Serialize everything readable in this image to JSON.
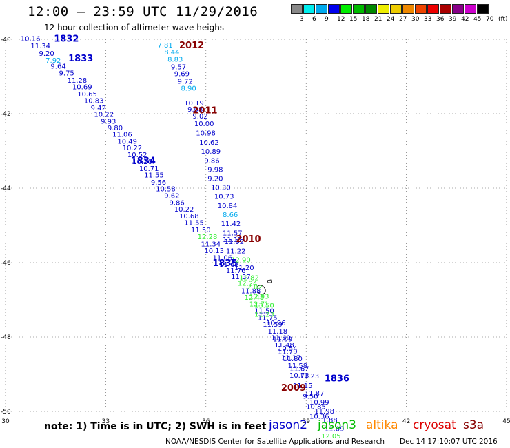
{
  "title": "12:00 — 23:59 UTC 11/29/2016",
  "subtitle": "12 hour collection of altimeter wave heighs",
  "color_scale": {
    "labels": [
      "3",
      "6",
      "9",
      "12",
      "15",
      "18",
      "21",
      "24",
      "27",
      "30",
      "33",
      "36",
      "39",
      "42",
      "45",
      "70",
      "(ft)"
    ],
    "colors": [
      "#888888",
      "#00eeee",
      "#00aaee",
      "#0000ee",
      "#00ee00",
      "#00bb00",
      "#008800",
      "#eeee00",
      "#eecc00",
      "#ee8800",
      "#ee4400",
      "#ee0000",
      "#aa0000",
      "#880088",
      "#cc00cc",
      "#000000"
    ]
  },
  "note": "note: 1) Time is in UTC; 2) SWH is in feet",
  "legend": [
    {
      "name": "jason2",
      "color": "#0000cc"
    },
    {
      "name": "jason3",
      "color": "#00bb00"
    },
    {
      "name": "altika",
      "color": "#ff8800"
    },
    {
      "name": "cryosat",
      "color": "#dd0000"
    },
    {
      "name": "s3a",
      "color": "#880000"
    }
  ],
  "footer": "NOAA/NESDIS Center for Satellite Applications and Research",
  "footer_date": "Dec 14 17:10:07 UTC 2016",
  "chart_data": {
    "type": "scatter",
    "xlim": [
      30,
      45
    ],
    "ylim": [
      -50,
      -40
    ],
    "x_ticks": [
      "30",
      "33",
      "36",
      "39",
      "42",
      "45"
    ],
    "y_ticks": [
      "-40",
      "-42",
      "-44",
      "-46",
      "-48",
      "-50"
    ],
    "grid": true,
    "pass_labels": [
      {
        "text": "1832",
        "x": 31.45,
        "y": -39.97,
        "color": "#0000cc"
      },
      {
        "text": "1833",
        "x": 31.88,
        "y": -40.5,
        "color": "#0000cc"
      },
      {
        "text": "1834",
        "x": 33.75,
        "y": -43.25,
        "color": "#0000cc"
      },
      {
        "text": "1835",
        "x": 36.2,
        "y": -46.0,
        "color": "#0000cc"
      },
      {
        "text": "1836",
        "x": 39.55,
        "y": -49.1,
        "color": "#0000cc"
      },
      {
        "text": "2012",
        "x": 35.2,
        "y": -40.15,
        "color": "#880000"
      },
      {
        "text": "2011",
        "x": 35.6,
        "y": -41.9,
        "color": "#880000"
      },
      {
        "text": "2010",
        "x": 36.9,
        "y": -45.35,
        "color": "#880000"
      },
      {
        "text": "2009",
        "x": 38.25,
        "y": -49.35,
        "color": "#880000"
      }
    ],
    "series": [
      {
        "name": "jason2",
        "points": [
          {
            "x": 30.45,
            "y": -39.97,
            "v": "10.16",
            "c": "#0000cc"
          },
          {
            "x": 30.75,
            "y": -40.17,
            "v": "11.34",
            "c": "#0000cc"
          },
          {
            "x": 31.0,
            "y": -40.37,
            "v": "9.20",
            "c": "#0000cc"
          },
          {
            "x": 31.2,
            "y": -40.56,
            "v": "7.92",
            "c": "#00aaee"
          },
          {
            "x": 31.35,
            "y": -40.71,
            "v": "9.64",
            "c": "#0000cc"
          },
          {
            "x": 31.6,
            "y": -40.9,
            "v": "9.75",
            "c": "#0000cc"
          },
          {
            "x": 31.85,
            "y": -41.09,
            "v": "11.28",
            "c": "#0000cc"
          },
          {
            "x": 32.0,
            "y": -41.27,
            "v": "10.69",
            "c": "#0000cc"
          },
          {
            "x": 32.15,
            "y": -41.46,
            "v": "10.65",
            "c": "#0000cc"
          },
          {
            "x": 32.35,
            "y": -41.64,
            "v": "10.83",
            "c": "#0000cc"
          },
          {
            "x": 32.55,
            "y": -41.83,
            "v": "9.42",
            "c": "#0000cc"
          },
          {
            "x": 32.65,
            "y": -42.01,
            "v": "10.22",
            "c": "#0000cc"
          },
          {
            "x": 32.85,
            "y": -42.19,
            "v": "9.93",
            "c": "#0000cc"
          },
          {
            "x": 33.05,
            "y": -42.37,
            "v": "9.80",
            "c": "#0000cc"
          },
          {
            "x": 33.2,
            "y": -42.55,
            "v": "11.06",
            "c": "#0000cc"
          },
          {
            "x": 33.35,
            "y": -42.73,
            "v": "10.49",
            "c": "#0000cc"
          },
          {
            "x": 33.5,
            "y": -42.91,
            "v": "10.22",
            "c": "#0000cc"
          },
          {
            "x": 33.65,
            "y": -43.09,
            "v": "10.52",
            "c": "#0000cc"
          },
          {
            "x": 33.8,
            "y": -43.28,
            "v": "10.20",
            "c": "#0000cc"
          },
          {
            "x": 34.0,
            "y": -43.46,
            "v": "10.71",
            "c": "#0000cc"
          },
          {
            "x": 34.15,
            "y": -43.64,
            "v": "11.55",
            "c": "#0000cc"
          },
          {
            "x": 34.35,
            "y": -43.83,
            "v": "9.56",
            "c": "#0000cc"
          },
          {
            "x": 34.5,
            "y": -44.01,
            "v": "10.58",
            "c": "#0000cc"
          },
          {
            "x": 34.75,
            "y": -44.19,
            "v": "9.62",
            "c": "#0000cc"
          },
          {
            "x": 34.9,
            "y": -44.38,
            "v": "9.86",
            "c": "#0000cc"
          },
          {
            "x": 35.05,
            "y": -44.56,
            "v": "10.22",
            "c": "#0000cc"
          },
          {
            "x": 35.2,
            "y": -44.74,
            "v": "10.68",
            "c": "#0000cc"
          },
          {
            "x": 35.35,
            "y": -44.92,
            "v": "11.55",
            "c": "#0000cc"
          },
          {
            "x": 35.55,
            "y": -45.11,
            "v": "11.50",
            "c": "#0000cc"
          },
          {
            "x": 35.75,
            "y": -45.3,
            "v": "12.28",
            "c": "#33ee33"
          },
          {
            "x": 35.85,
            "y": -45.49,
            "v": "11.34",
            "c": "#0000cc"
          },
          {
            "x": 35.95,
            "y": -45.67,
            "v": "10.13",
            "c": "#0000cc"
          },
          {
            "x": 36.2,
            "y": -45.86,
            "v": "11.06",
            "c": "#0000cc"
          },
          {
            "x": 36.4,
            "y": -46.04,
            "v": "11.63",
            "c": "#0000cc"
          },
          {
            "x": 36.6,
            "y": -46.2,
            "v": "11.76",
            "c": "#0000cc"
          },
          {
            "x": 36.75,
            "y": -46.37,
            "v": "11.57",
            "c": "#0000cc"
          },
          {
            "x": 36.95,
            "y": -46.55,
            "v": "12.24",
            "c": "#33ee33"
          },
          {
            "x": 37.05,
            "y": -46.75,
            "v": "11.88",
            "c": "#0000cc"
          },
          {
            "x": 37.15,
            "y": -46.93,
            "v": "12.48",
            "c": "#33ee33"
          },
          {
            "x": 37.3,
            "y": -47.1,
            "v": "12.71",
            "c": "#33ee33"
          },
          {
            "x": 37.45,
            "y": -47.29,
            "v": "11.50",
            "c": "#0000cc"
          },
          {
            "x": 37.55,
            "y": -47.47,
            "v": "11.75",
            "c": "#0000cc"
          },
          {
            "x": 37.7,
            "y": -47.65,
            "v": "11.59",
            "c": "#0000cc"
          },
          {
            "x": 37.85,
            "y": -47.83,
            "v": "11.18",
            "c": "#0000cc"
          },
          {
            "x": 37.95,
            "y": -48.01,
            "v": "11.69",
            "c": "#0000cc"
          },
          {
            "x": 38.05,
            "y": -48.2,
            "v": "11.48",
            "c": "#0000cc"
          },
          {
            "x": 38.15,
            "y": -48.38,
            "v": "11.79",
            "c": "#0000cc"
          },
          {
            "x": 38.3,
            "y": -48.57,
            "v": "11.80",
            "c": "#0000cc"
          },
          {
            "x": 38.45,
            "y": -48.76,
            "v": "11.58",
            "c": "#0000cc"
          },
          {
            "x": 38.5,
            "y": -49.02,
            "v": "10.73",
            "c": "#0000cc"
          },
          {
            "x": 38.6,
            "y": -49.3,
            "v": "11.15",
            "c": "#0000cc"
          },
          {
            "x": 38.9,
            "y": -49.58,
            "v": "9.50",
            "c": "#0000cc"
          },
          {
            "x": 39.0,
            "y": -49.86,
            "v": "10.85",
            "c": "#0000cc"
          },
          {
            "x": 39.1,
            "y": -50.12,
            "v": "10.36",
            "c": "#0000cc"
          }
        ]
      },
      {
        "name": "s3a",
        "points": [
          {
            "x": 34.55,
            "y": -40.15,
            "v": "7.81",
            "c": "#00aaee"
          },
          {
            "x": 34.75,
            "y": -40.33,
            "v": "8.44",
            "c": "#00aaee"
          },
          {
            "x": 34.85,
            "y": -40.53,
            "v": "8.83",
            "c": "#00aaee"
          },
          {
            "x": 34.95,
            "y": -40.73,
            "v": "9.57",
            "c": "#0000cc"
          },
          {
            "x": 35.05,
            "y": -40.92,
            "v": "9.69",
            "c": "#0000cc"
          },
          {
            "x": 35.15,
            "y": -41.12,
            "v": "9.72",
            "c": "#0000cc"
          },
          {
            "x": 35.25,
            "y": -41.31,
            "v": "8.90",
            "c": "#00aaee"
          },
          {
            "x": 35.35,
            "y": -41.7,
            "v": "10.19",
            "c": "#0000cc"
          },
          {
            "x": 35.45,
            "y": -41.87,
            "v": "9.08",
            "c": "#0000cc"
          },
          {
            "x": 35.6,
            "y": -42.06,
            "v": "9.02",
            "c": "#0000cc"
          },
          {
            "x": 35.65,
            "y": -42.26,
            "v": "10.00",
            "c": "#0000cc"
          },
          {
            "x": 35.7,
            "y": -42.51,
            "v": "10.98",
            "c": "#0000cc"
          },
          {
            "x": 35.8,
            "y": -42.76,
            "v": "10.62",
            "c": "#0000cc"
          },
          {
            "x": 35.85,
            "y": -43.0,
            "v": "10.89",
            "c": "#0000cc"
          },
          {
            "x": 35.95,
            "y": -43.25,
            "v": "9.86",
            "c": "#0000cc"
          },
          {
            "x": 36.05,
            "y": -43.49,
            "v": "9.98",
            "c": "#0000cc"
          },
          {
            "x": 36.05,
            "y": -43.73,
            "v": "9.20",
            "c": "#0000cc"
          },
          {
            "x": 36.15,
            "y": -43.97,
            "v": "10.30",
            "c": "#0000cc"
          },
          {
            "x": 36.25,
            "y": -44.21,
            "v": "10.73",
            "c": "#0000cc"
          },
          {
            "x": 36.35,
            "y": -44.46,
            "v": "10.84",
            "c": "#0000cc"
          },
          {
            "x": 36.5,
            "y": -44.7,
            "v": "8.66",
            "c": "#00aaee"
          },
          {
            "x": 36.45,
            "y": -44.94,
            "v": "11.42",
            "c": "#0000cc"
          },
          {
            "x": 36.5,
            "y": -45.19,
            "v": "11.57",
            "c": "#0000cc"
          },
          {
            "x": 36.5,
            "y": -45.37,
            "v": "11.17",
            "c": "#0000cc"
          },
          {
            "x": 36.55,
            "y": -45.43,
            "v": "11.92",
            "c": "#0000cc"
          },
          {
            "x": 36.6,
            "y": -45.68,
            "v": "11.22",
            "c": "#0000cc"
          },
          {
            "x": 36.75,
            "y": -45.92,
            "v": "12.90",
            "c": "#33ee33"
          },
          {
            "x": 36.85,
            "y": -46.13,
            "v": "11.20",
            "c": "#0000cc"
          },
          {
            "x": 37.0,
            "y": -46.4,
            "v": "12.82",
            "c": "#33ee33"
          },
          {
            "x": 37.1,
            "y": -46.65,
            "v": "12.02",
            "c": "#33ee33"
          },
          {
            "x": 37.3,
            "y": -46.9,
            "v": "12.93",
            "c": "#33ee33"
          },
          {
            "x": 37.45,
            "y": -47.14,
            "v": "13.50",
            "c": "#33ee33"
          },
          {
            "x": 37.45,
            "y": -47.38,
            "v": "11.23",
            "c": "#33ee33"
          },
          {
            "x": 37.8,
            "y": -47.61,
            "v": "10.96",
            "c": "#0000cc"
          },
          {
            "x": 38.0,
            "y": -48.05,
            "v": "11.09",
            "c": "#0000cc"
          },
          {
            "x": 38.15,
            "y": -48.3,
            "v": "10.54",
            "c": "#0000cc"
          },
          {
            "x": 38.25,
            "y": -48.55,
            "v": "11.17",
            "c": "#0000cc"
          },
          {
            "x": 38.5,
            "y": -48.84,
            "v": "11.67",
            "c": "#0000cc"
          },
          {
            "x": 38.8,
            "y": -49.04,
            "v": "11.23",
            "c": "#0000cc"
          },
          {
            "x": 38.95,
            "y": -49.5,
            "v": "11.87",
            "c": "#0000cc"
          },
          {
            "x": 39.1,
            "y": -49.74,
            "v": "10.99",
            "c": "#0000cc"
          },
          {
            "x": 39.25,
            "y": -49.98,
            "v": "11.98",
            "c": "#0000cc"
          },
          {
            "x": 39.35,
            "y": -50.22,
            "v": "11.88",
            "c": "#0000cc"
          },
          {
            "x": 39.55,
            "y": -50.45,
            "v": "11.09",
            "c": "#0000cc"
          },
          {
            "x": 39.45,
            "y": -50.65,
            "v": "12.05",
            "c": "#33ee33"
          }
        ]
      }
    ]
  }
}
